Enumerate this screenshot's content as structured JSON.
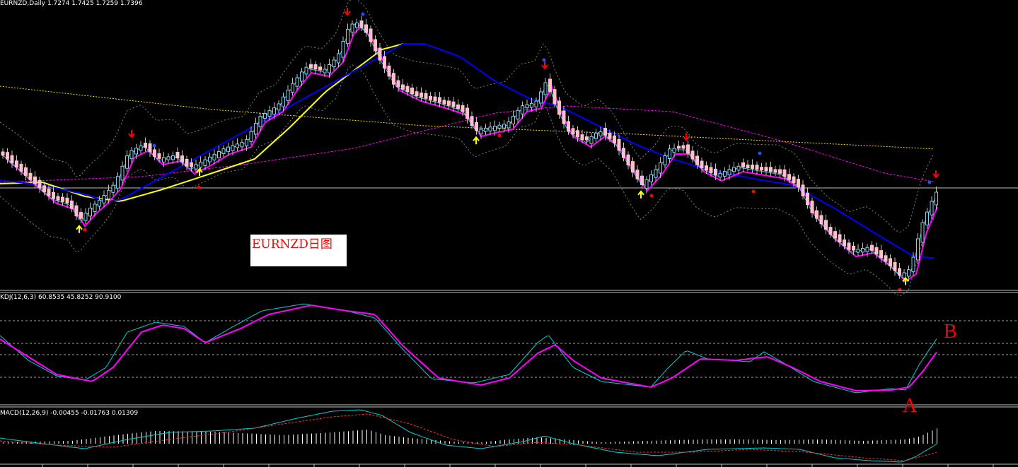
{
  "chart_data": [
    {
      "type": "candlestick",
      "title": "EURNZD,Daily",
      "ohlc_readout": "1.7274 1.7425 1.7259 1.7396",
      "annotation": "EURNZD日图",
      "last_price_line": 1.7396,
      "colors": {
        "up": "#87ceeb",
        "down": "#ffc0cb",
        "fast_ma": "#ff00ff",
        "mid_ma": "#0000ff",
        "slow_ma": "#ffff00",
        "long_ma": "#ff8c00",
        "bands": "#808080"
      }
    },
    {
      "type": "line",
      "title": "KDJ(12,6,3) 60.8535 45.8252 90.9100",
      "levels": [
        80,
        65,
        35,
        20
      ],
      "ylim": [
        0,
        100
      ],
      "series": [
        {
          "color": "#00ced1",
          "role": "K"
        },
        {
          "color": "#ff00ff",
          "role": "D"
        }
      ],
      "annotations": [
        "A",
        "B"
      ]
    },
    {
      "type": "bar",
      "title": "MACD(12,26,9) -0.00455 -0.01763 0.01309",
      "series": [
        {
          "color": "#ffffff",
          "role": "histogram"
        },
        {
          "color": "#00ced1",
          "role": "macd"
        },
        {
          "color": "#ff3030",
          "role": "signal"
        }
      ]
    }
  ]
}
